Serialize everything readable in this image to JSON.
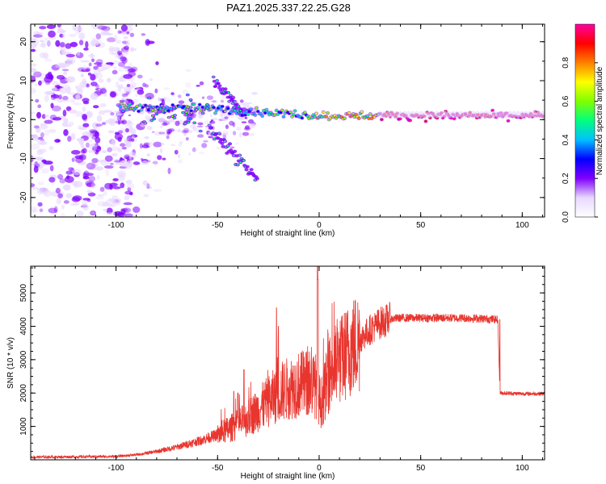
{
  "title": "PAZ1.2025.337.22.25.G28",
  "chart_data": [
    {
      "type": "heatmap",
      "name": "spectrogram",
      "xlabel": "Height of straight line (km)",
      "ylabel": "Frequency (Hz)",
      "xlim": [
        -142,
        111
      ],
      "ylim": [
        -25,
        24.5
      ],
      "xticks": [
        -100,
        -50,
        0,
        50,
        100
      ],
      "yticks": [
        -20,
        -10,
        0,
        10,
        20
      ],
      "colorbar": {
        "label": "Normalized spectral amplitude",
        "range": [
          0,
          1
        ],
        "ticks": [
          "0.0",
          "0.2",
          "0.4",
          "0.6",
          "0.8"
        ],
        "tick_values": [
          0.0,
          0.2,
          0.4,
          0.6,
          0.8
        ],
        "colors": [
          "#ffffff",
          "#e8d8ff",
          "#8000ff",
          "#0000ff",
          "#00c0ff",
          "#00ff80",
          "#80ff00",
          "#ffff00",
          "#ff8000",
          "#ff0000",
          "#ff00a0"
        ]
      },
      "features": [
        {
          "desc": "sparse scattered noise",
          "x_range": [
            -142,
            -100
          ],
          "f_range": [
            -25,
            24
          ]
        },
        {
          "desc": "main carrier line",
          "x_range": [
            -95,
            111
          ],
          "f_center": 1
        },
        {
          "desc": "upper branch",
          "x_range": [
            -55,
            -40
          ],
          "f_range": [
            2,
            10
          ]
        },
        {
          "desc": "lower branch",
          "x_range": [
            -55,
            -30
          ],
          "f_range": [
            -17,
            -3
          ]
        }
      ]
    },
    {
      "type": "line",
      "name": "snr",
      "xlabel": "Height of straight line (km)",
      "ylabel": "SNR (10 * v/v)",
      "xlim": [
        -142,
        111
      ],
      "ylim": [
        0,
        5800
      ],
      "xticks": [
        -100,
        -50,
        0,
        50,
        100
      ],
      "yticks": [
        1000,
        2000,
        3000,
        4000,
        5000
      ],
      "color": "#e8352e",
      "envelope": {
        "x": [
          -142,
          -120,
          -100,
          -90,
          -80,
          -70,
          -60,
          -50,
          -45,
          -40,
          -35,
          -30,
          -25,
          -20,
          -15,
          -10,
          -5,
          -1,
          0,
          1,
          3,
          5,
          10,
          15,
          20,
          25,
          30,
          35,
          40,
          50,
          60,
          70,
          80,
          88,
          89,
          90,
          100,
          111
        ],
        "y": [
          80,
          90,
          100,
          150,
          250,
          380,
          550,
          750,
          900,
          1050,
          1250,
          1500,
          1750,
          2000,
          2150,
          2250,
          2300,
          2200,
          1800,
          1700,
          2100,
          2600,
          2950,
          3300,
          3600,
          3900,
          4100,
          4220,
          4250,
          4250,
          4250,
          4250,
          4230,
          4200,
          2000,
          2000,
          1980,
          1980
        ]
      },
      "spikes": [
        {
          "x": -42,
          "y": 2050
        },
        {
          "x": -40,
          "y": 2000
        },
        {
          "x": -37,
          "y": 2700
        },
        {
          "x": -21,
          "y": 4550
        },
        {
          "x": -20,
          "y": 4000
        },
        {
          "x": -0.8,
          "y": 5800
        },
        {
          "x": -0.5,
          "y": 5400
        }
      ]
    }
  ]
}
